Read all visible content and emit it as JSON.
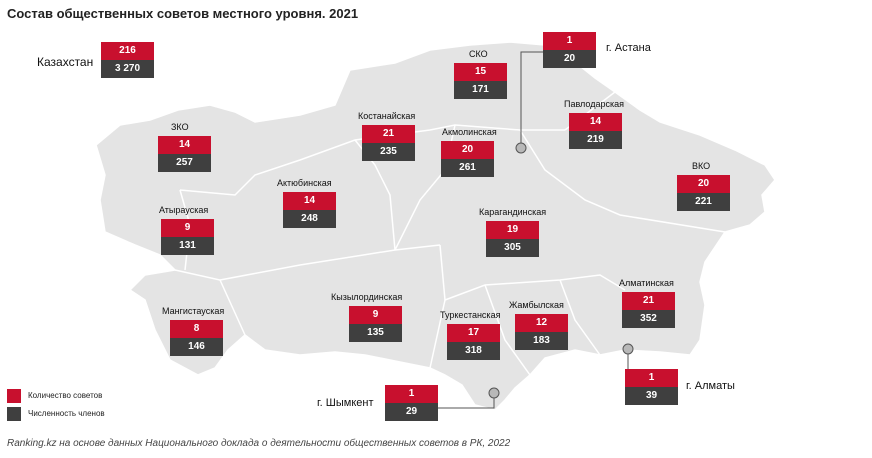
{
  "title": "Состав общественных советов местного уровня. 2021",
  "colors": {
    "councils": "#c8102e",
    "members": "#3f3f3f",
    "map_fill": "#e4e4e4",
    "map_border": "#ffffff"
  },
  "country": {
    "label": "Казахстан",
    "councils": "216",
    "members": "3 270"
  },
  "regions": [
    {
      "id": "zko",
      "label": "ЗКО",
      "councils": "14",
      "members": "257"
    },
    {
      "id": "atyrau",
      "label": "Атырауская",
      "councils": "9",
      "members": "131"
    },
    {
      "id": "mangystau",
      "label": "Мангистауская",
      "councils": "8",
      "members": "146"
    },
    {
      "id": "aktobe",
      "label": "Актюбинская",
      "councils": "14",
      "members": "248"
    },
    {
      "id": "kostanay",
      "label": "Костанайская",
      "councils": "21",
      "members": "235"
    },
    {
      "id": "sko",
      "label": "СКО",
      "councils": "15",
      "members": "171"
    },
    {
      "id": "akmola",
      "label": "Акмолинская",
      "councils": "20",
      "members": "261"
    },
    {
      "id": "pavlodar",
      "label": "Павлодарская",
      "councils": "14",
      "members": "219"
    },
    {
      "id": "vko",
      "label": "ВКО",
      "councils": "20",
      "members": "221"
    },
    {
      "id": "karaganda",
      "label": "Карагандинская",
      "councils": "19",
      "members": "305"
    },
    {
      "id": "kyzylorda",
      "label": "Кызылординская",
      "councils": "9",
      "members": "135"
    },
    {
      "id": "turkestan",
      "label": "Туркестанская",
      "councils": "17",
      "members": "318"
    },
    {
      "id": "zhambyl",
      "label": "Жамбылская",
      "councils": "12",
      "members": "183"
    },
    {
      "id": "almaty_obl",
      "label": "Алматинская",
      "councils": "21",
      "members": "352"
    }
  ],
  "cities": [
    {
      "id": "astana",
      "label": "г. Астана",
      "councils": "1",
      "members": "20"
    },
    {
      "id": "almaty",
      "label": "г. Алматы",
      "councils": "1",
      "members": "39"
    },
    {
      "id": "shymkent",
      "label": "г. Шымкент",
      "councils": "1",
      "members": "29"
    }
  ],
  "legend": [
    {
      "label": "Количество советов",
      "color": "#c8102e"
    },
    {
      "label": "Численность членов",
      "color": "#3f3f3f"
    }
  ],
  "source": "Ranking.kz на основе данных Национального доклада о деятельности общественных советов в РК, 2022"
}
